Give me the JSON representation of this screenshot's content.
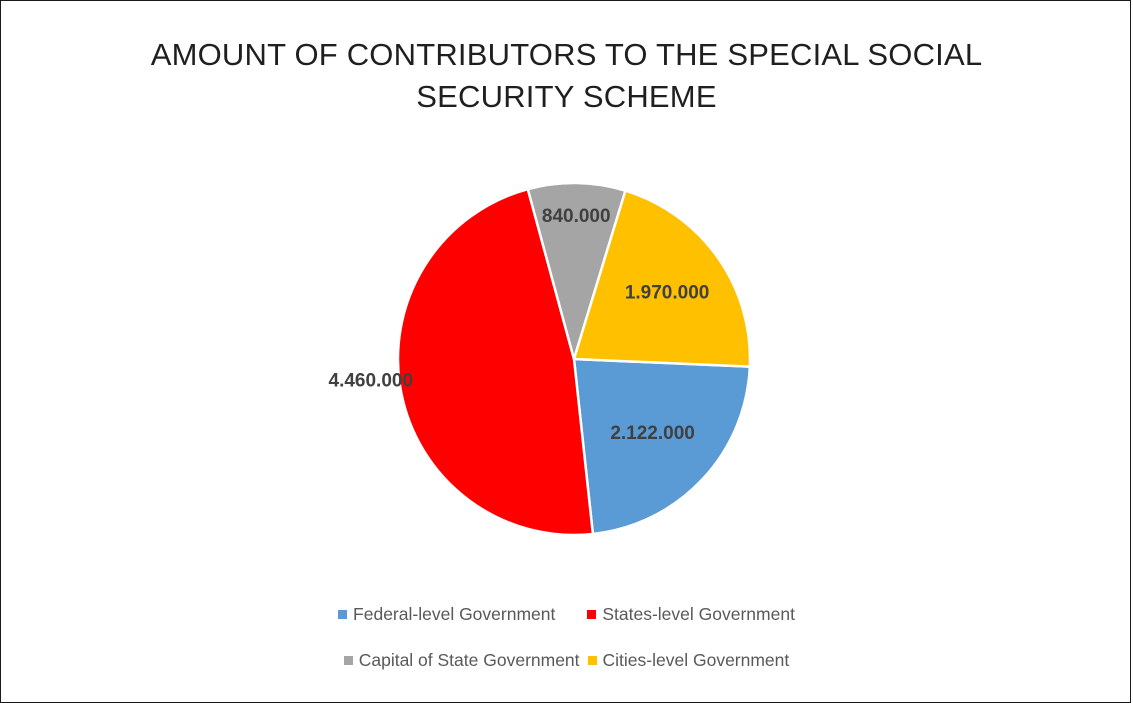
{
  "chart_data": {
    "type": "pie",
    "title_lines": [
      "AMOUNT OF CONTRIBUTORS TO THE SPECIAL SOCIAL",
      "SECURITY SCHEME"
    ],
    "slices": [
      {
        "name": "Federal-level Government",
        "value": 2122000,
        "label": "2.122.000",
        "color": "#5B9BD5"
      },
      {
        "name": "States-level Government",
        "value": 4460000,
        "label": "4.460.000",
        "color": "#FF0000"
      },
      {
        "name": "Capital of State Government",
        "value": 840000,
        "label": "840.000",
        "color": "#A5A5A5"
      },
      {
        "name": "Cities-level Government",
        "value": 1970000,
        "label": "1.970.000",
        "color": "#FFC000"
      }
    ],
    "legend_position": "bottom",
    "data_labels": "inside"
  }
}
